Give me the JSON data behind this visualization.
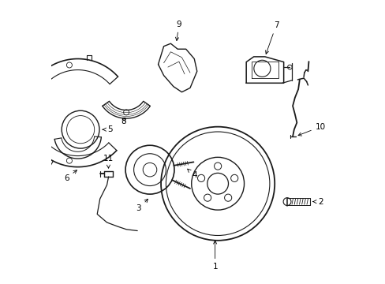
{
  "background_color": "#ffffff",
  "line_color": "#1a1a1a",
  "text_color": "#000000",
  "figure_width": 4.89,
  "figure_height": 3.6,
  "dpi": 100,
  "lw": 0.9,
  "fontsize": 7.5
}
